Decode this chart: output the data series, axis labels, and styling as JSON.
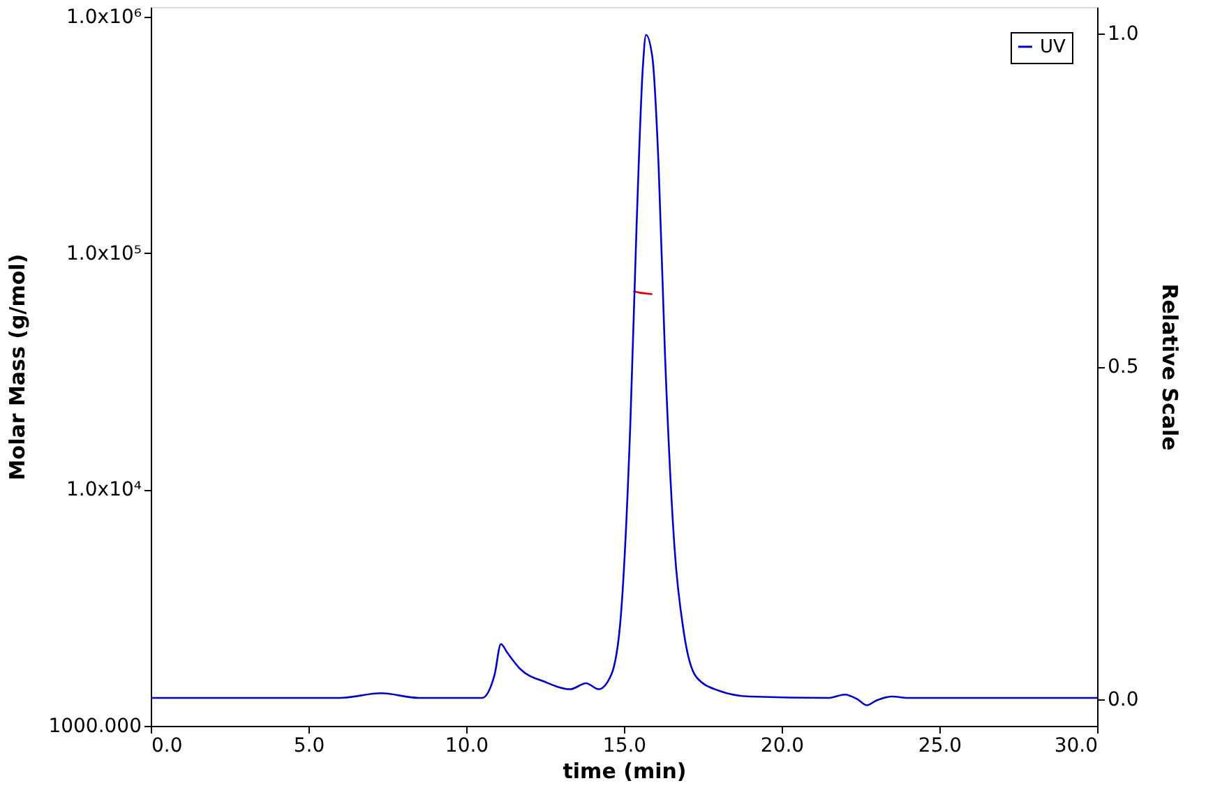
{
  "chart_data": {
    "type": "line",
    "xlabel": "time (min)",
    "ylabel": "Molar Mass (g/mol)",
    "y2label": "Relative Scale",
    "xlim": [
      0,
      30
    ],
    "xticks": [
      {
        "value": 0,
        "label": "0.0"
      },
      {
        "value": 5,
        "label": "5.0"
      },
      {
        "value": 10,
        "label": "10.0"
      },
      {
        "value": 15,
        "label": "15.0"
      },
      {
        "value": 20,
        "label": "20.0"
      },
      {
        "value": 25,
        "label": "25.0"
      },
      {
        "value": 30,
        "label": "30.0"
      }
    ],
    "ylim": [
      1000,
      1100000
    ],
    "yticks": [
      {
        "value": 1000,
        "label": "1000.000"
      },
      {
        "value": 10000,
        "label": "1.0x10⁴"
      },
      {
        "value": 100000,
        "label": "1.0x10⁵"
      },
      {
        "value": 1000000,
        "label": "1.0x10⁶"
      }
    ],
    "y2lim": [
      -0.04,
      1.04
    ],
    "y2ticks": [
      {
        "value": 0,
        "label": "0.0"
      },
      {
        "value": 0.5,
        "label": "0.5"
      },
      {
        "value": 1,
        "label": "1.0"
      }
    ],
    "log": "y",
    "grid": false,
    "legend": "top right",
    "line_style": "solid",
    "series": [
      {
        "color": "#dd0000",
        "x": [
          15.3,
          15.5,
          15.7,
          15.9
        ],
        "values": [
          69000,
          68000,
          67500,
          67000
        ]
      },
      {
        "name": "UV",
        "color": "#0000cc",
        "axis": "y2",
        "x": [
          0,
          6.0,
          7.3,
          8.5,
          10.5,
          10.9,
          11.1,
          11.3,
          11.7,
          12.5,
          13.3,
          13.8,
          14.2,
          14.6,
          14.9,
          15.2,
          15.4,
          15.6,
          15.7,
          15.9,
          16.1,
          16.3,
          16.6,
          16.9,
          17.3,
          18.0,
          19.0,
          21.5,
          22.0,
          22.4,
          22.7,
          23.0,
          23.5,
          24.0,
          30.0
        ],
        "values": [
          0.002,
          0.002,
          0.009,
          0.002,
          0.002,
          0.037,
          0.083,
          0.07,
          0.046,
          0.026,
          0.015,
          0.024,
          0.015,
          0.037,
          0.124,
          0.41,
          0.71,
          0.95,
          0.998,
          0.965,
          0.8,
          0.52,
          0.23,
          0.1,
          0.033,
          0.013,
          0.004,
          0.002,
          0.007,
          0.0,
          -0.009,
          -0.002,
          0.004,
          0.002,
          0.002
        ]
      }
    ]
  }
}
